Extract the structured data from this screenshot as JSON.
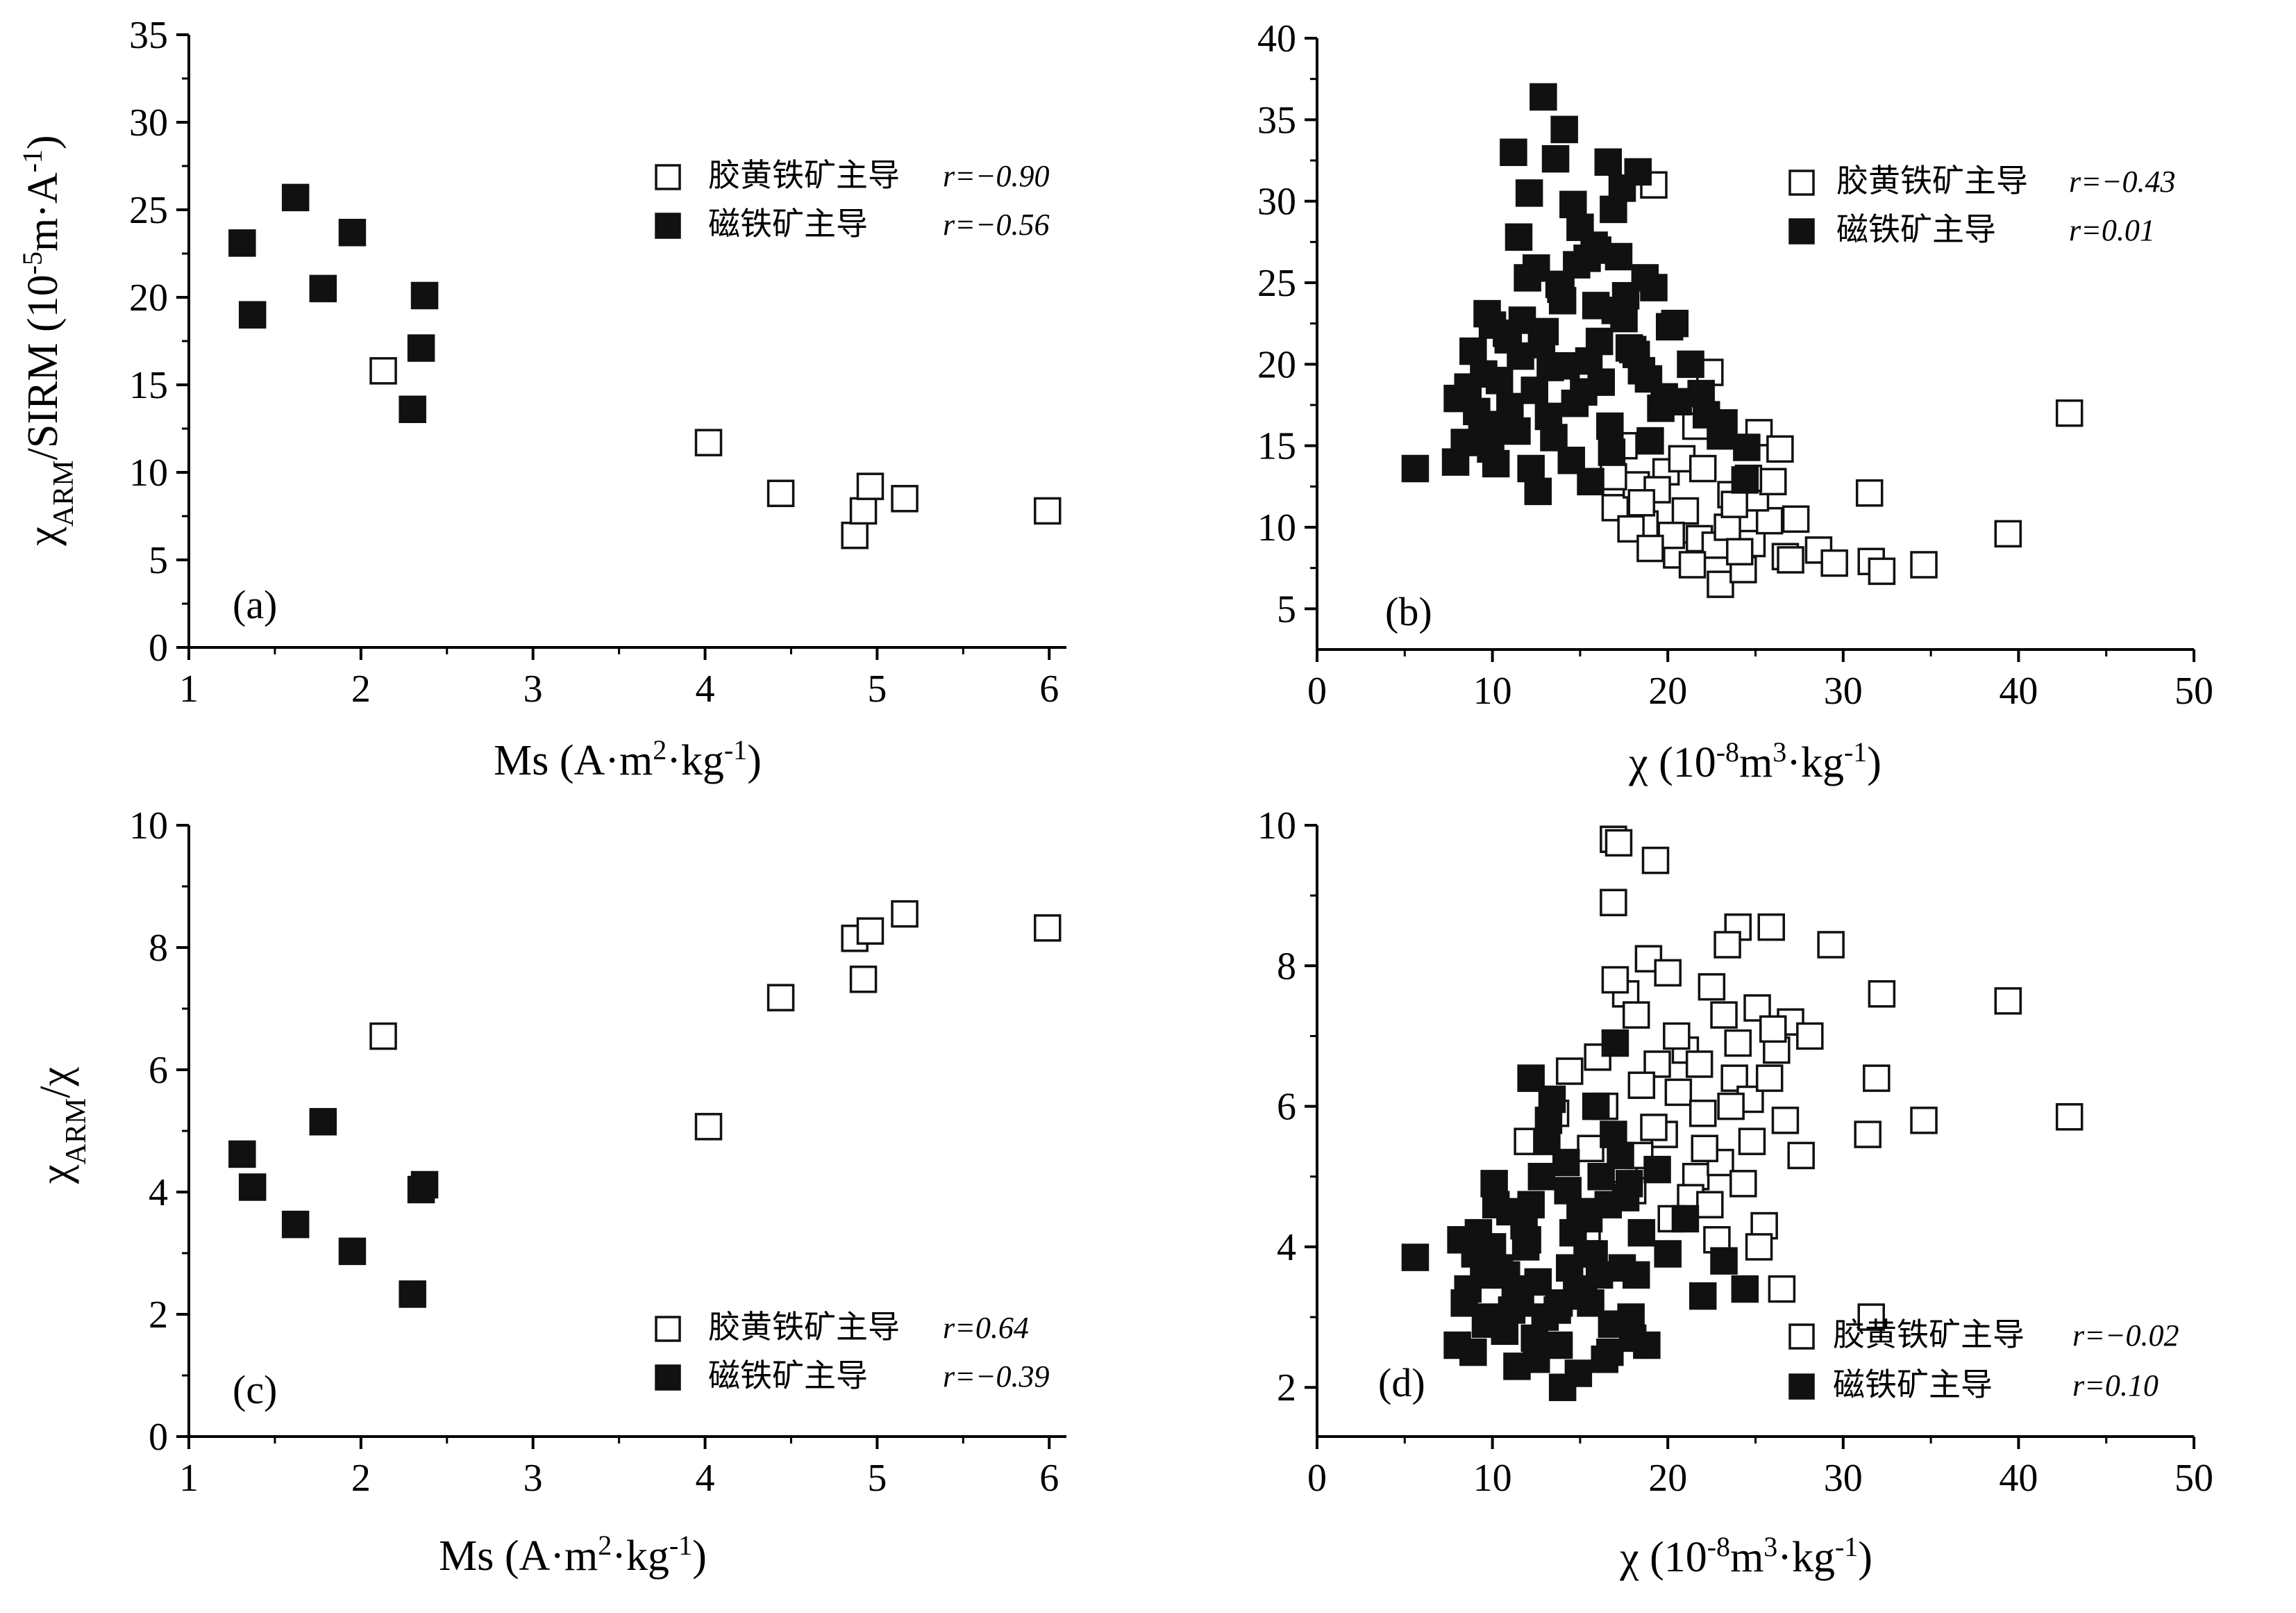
{
  "chart_data": [
    {
      "type": "scatter",
      "panel_label": "(a)",
      "xlabel": "Ms (A·m²·kg⁻¹)",
      "ylabel": "χARM/SIRM (10⁻⁵m·A⁻¹)",
      "xlim": [
        1,
        6.1
      ],
      "ylim": [
        0,
        35
      ],
      "xticks": [
        1,
        2,
        3,
        4,
        5,
        6
      ],
      "yticks": [
        0,
        5,
        10,
        15,
        20,
        25,
        30,
        35
      ],
      "grid": false,
      "legend_position": "top-right",
      "series": [
        {
          "name": "胶黄铁矿主导",
          "r_label": "r=−0.90",
          "marker": "open-square",
          "x": [
            2.13,
            4.02,
            4.44,
            4.87,
            4.92,
            4.96,
            5.16,
            5.99
          ],
          "y": [
            15.8,
            11.7,
            8.8,
            6.4,
            7.8,
            9.2,
            8.5,
            7.8
          ]
        },
        {
          "name": "磁铁矿主导",
          "r_label": "r=−0.56",
          "marker": "filled-square",
          "x": [
            1.31,
            1.37,
            1.62,
            1.78,
            1.95,
            2.3,
            2.35,
            2.37
          ],
          "y": [
            23.1,
            19.0,
            25.7,
            20.5,
            23.7,
            13.6,
            17.1,
            20.1
          ]
        }
      ]
    },
    {
      "type": "scatter",
      "panel_label": "(b)",
      "xlabel": "χ (10⁻⁸m³·kg⁻¹)",
      "ylabel": "",
      "xlim": [
        0,
        50
      ],
      "ylim": [
        2.5,
        40
      ],
      "xticks": [
        0,
        10,
        20,
        30,
        40,
        50
      ],
      "yticks": [
        5,
        10,
        15,
        20,
        25,
        30,
        35,
        40
      ],
      "grid": false,
      "legend_position": "top-right",
      "series": [
        {
          "name": "胶黄铁矿主导",
          "r_label": "r=−0.43",
          "marker": "open-square",
          "x": [
            19.2,
            22.4,
            25.2,
            26.4,
            28.6,
            31.5,
            31.6,
            32.2,
            34.6,
            39.4,
            42.9,
            23.0,
            24.3,
            20.5,
            21.8,
            18.7,
            17.0,
            26.7,
            27.3,
            29.5,
            24.8,
            23.6,
            19.9,
            18.2,
            21.0,
            22.7,
            25.8,
            20.8,
            16.9,
            17.9,
            23.4,
            25.0,
            19.4,
            21.4,
            24.1,
            26.0,
            22.0,
            18.5,
            20.2,
            23.8,
            27.0,
            17.5,
            21.6,
            24.6,
            19.0
          ],
          "y": [
            31.0,
            19.5,
            15.8,
            14.8,
            8.6,
            12.1,
            7.9,
            7.3,
            7.7,
            9.6,
            17.0,
            6.5,
            7.4,
            8.3,
            9.3,
            10.2,
            11.2,
            8.2,
            10.5,
            7.8,
            9.0,
            12.0,
            13.4,
            12.6,
            11.0,
            8.9,
            10.4,
            14.2,
            13.1,
            9.9,
            10.0,
            11.8,
            12.3,
            7.7,
            8.5,
            12.8,
            13.6,
            11.5,
            9.5,
            11.4,
            8.0,
            15.0,
            16.2,
            13.0,
            8.7
          ]
        },
        {
          "name": "磁铁矿主导",
          "r_label": "r=0.01",
          "marker": "filled-square",
          "x": [
            5.6,
            12.9,
            14.1,
            14.6,
            16.6,
            18.3,
            18.7,
            16.9,
            11.2,
            11.5,
            12.1,
            13.6,
            15.0,
            15.8,
            17.4,
            19.2,
            20.1,
            21.9,
            23.2,
            24.5,
            24.4,
            8.0,
            8.4,
            8.9,
            9.4,
            9.9,
            10.4,
            10.9,
            11.7,
            12.4,
            13.2,
            13.9,
            14.8,
            15.5,
            16.2,
            17.0,
            17.8,
            18.5,
            19.6,
            20.4,
            21.3,
            22.2,
            23.0,
            7.9,
            8.6,
            9.1,
            9.7,
            10.2,
            10.8,
            11.4,
            12.0,
            12.6,
            13.3,
            14.0,
            14.7,
            15.4,
            16.1,
            16.8,
            17.6,
            18.2,
            19.0,
            19.8,
            9.5,
            10.5,
            11.6,
            12.2,
            13.0,
            13.8,
            14.5,
            15.2,
            16.0,
            16.7,
            17.5,
            18.9,
            20.6,
            10.0,
            11.0,
            12.8,
            14.2,
            15.9,
            17.2,
            18.0,
            13.5,
            15.6,
            12.5
          ],
          "y": [
            13.6,
            36.4,
            34.4,
            29.8,
            32.4,
            31.8,
            25.3,
            29.5,
            33.0,
            27.8,
            30.5,
            32.6,
            28.4,
            27.3,
            30.8,
            24.7,
            22.3,
            18.2,
            16.4,
            14.9,
            12.9,
            17.9,
            15.2,
            20.8,
            16.0,
            14.8,
            19.0,
            21.5,
            22.7,
            18.4,
            16.8,
            24.6,
            26.1,
            20.2,
            18.9,
            23.3,
            21.0,
            19.6,
            17.3,
            22.5,
            20.0,
            16.9,
            15.6,
            14.0,
            18.6,
            17.1,
            23.1,
            13.9,
            21.9,
            15.9,
            25.3,
            12.2,
            19.8,
            23.9,
            17.6,
            26.5,
            21.4,
            14.6,
            24.2,
            20.6,
            15.3,
            18.0,
            19.4,
            16.3,
            20.5,
            13.6,
            22.0,
            24.9,
            14.1,
            18.3,
            27.0,
            16.2,
            22.8,
            19.1,
            17.7,
            22.4,
            17.4,
            21.2,
            19.9,
            23.6,
            26.6,
            20.9,
            15.5,
            12.8,
            25.9
          ]
        }
      ]
    },
    {
      "type": "scatter",
      "panel_label": "(c)",
      "xlabel": "Ms (A·m²·kg⁻¹)",
      "ylabel": "χARM/χ",
      "xlim": [
        1,
        6.1
      ],
      "ylim": [
        0,
        10
      ],
      "xticks": [
        1,
        2,
        3,
        4,
        5,
        6
      ],
      "yticks": [
        0,
        2,
        4,
        6,
        8,
        10
      ],
      "grid": false,
      "legend_position": "bottom-right",
      "series": [
        {
          "name": "胶黄铁矿主导",
          "r_label": "r=0.64",
          "marker": "open-square",
          "x": [
            2.13,
            4.02,
            4.44,
            4.87,
            4.92,
            4.96,
            5.16,
            5.99
          ],
          "y": [
            6.55,
            5.07,
            7.18,
            8.15,
            7.48,
            8.27,
            8.55,
            8.32
          ]
        },
        {
          "name": "磁铁矿主导",
          "r_label": "r=−0.39",
          "marker": "filled-square",
          "x": [
            1.31,
            1.37,
            1.62,
            1.78,
            1.95,
            2.3,
            2.35,
            2.37
          ],
          "y": [
            4.62,
            4.08,
            3.47,
            5.15,
            3.03,
            2.33,
            4.04,
            4.12
          ]
        }
      ]
    },
    {
      "type": "scatter",
      "panel_label": "(d)",
      "xlabel": "χ (10⁻⁸m³·kg⁻¹)",
      "ylabel": "",
      "xlim": [
        0,
        50
      ],
      "ylim": [
        1.3,
        10
      ],
      "xticks": [
        0,
        10,
        20,
        30,
        40,
        50
      ],
      "yticks": [
        2,
        4,
        6,
        8,
        10
      ],
      "grid": false,
      "legend_position": "bottom-right",
      "series": [
        {
          "name": "胶黄铁矿主导",
          "r_label": "r=−0.02",
          "marker": "open-square",
          "x": [
            16.9,
            17.2,
            19.3,
            16.9,
            29.3,
            32.2,
            39.4,
            42.9,
            31.9,
            34.6,
            31.6,
            31.4,
            26.5,
            24.0,
            25.9,
            18.9,
            20.0,
            22.5,
            23.4,
            25.1,
            27.0,
            28.1,
            21.0,
            19.4,
            17.6,
            18.2,
            16.4,
            15.6,
            14.4,
            12.0,
            20.6,
            22.0,
            23.8,
            24.7,
            26.2,
            27.6,
            21.6,
            19.8,
            18.5,
            17.0,
            15.1,
            21.3,
            23.0,
            24.3,
            25.5,
            26.7,
            22.8,
            20.2,
            18.0,
            16.0,
            24.0,
            25.2,
            19.2,
            22.1,
            23.6,
            20.5,
            21.8,
            17.5,
            25.8,
            15.4,
            13.6,
            23.2,
            24.8,
            22.4,
            18.4,
            26.0
          ],
          "y": [
            9.8,
            9.75,
            9.5,
            8.9,
            8.3,
            7.6,
            7.5,
            5.85,
            6.4,
            5.8,
            3.0,
            5.6,
            3.4,
            8.55,
            8.55,
            8.1,
            7.9,
            7.7,
            8.3,
            7.4,
            7.2,
            7.0,
            6.8,
            6.6,
            7.6,
            7.3,
            6.0,
            5.4,
            6.5,
            5.5,
            6.2,
            5.9,
            6.4,
            6.1,
            6.8,
            5.3,
            5.0,
            5.6,
            6.3,
            7.8,
            4.5,
            4.7,
            5.2,
            4.9,
            4.3,
            5.8,
            4.1,
            4.4,
            4.8,
            6.7,
            6.9,
            4.0,
            5.7,
            5.4,
            6.0,
            7.0,
            6.6,
            5.1,
            6.4,
            4.2,
            5.9,
            7.3,
            5.5,
            4.6,
            5.3,
            7.1
          ],
          "r_pos": "bottom-right"
        },
        {
          "name": "磁铁矿主导",
          "r_label": "r=0.10",
          "marker": "filled-square",
          "x": [
            5.6,
            8.0,
            8.6,
            9.2,
            9.8,
            10.4,
            11.0,
            11.6,
            12.2,
            12.8,
            13.4,
            14.0,
            14.6,
            15.2,
            15.8,
            16.4,
            17.0,
            17.6,
            18.2,
            18.8,
            19.4,
            20.0,
            21.0,
            22.0,
            23.2,
            24.4,
            8.2,
            8.9,
            9.5,
            10.1,
            10.7,
            11.3,
            11.9,
            12.5,
            13.1,
            13.7,
            14.3,
            14.9,
            15.5,
            16.1,
            16.7,
            17.3,
            17.9,
            18.5,
            8.4,
            9.0,
            9.6,
            10.2,
            10.8,
            11.4,
            12.0,
            12.6,
            13.2,
            13.8,
            14.4,
            15.0,
            15.6,
            16.2,
            16.8,
            17.4,
            18.0,
            11.8,
            13.0,
            14.2,
            15.4,
            16.6,
            12.4,
            14.8,
            10.0,
            16.9,
            13.8,
            12.2,
            15.9,
            11.1,
            17.8
          ],
          "y": [
            3.85,
            2.6,
            3.4,
            4.2,
            3.0,
            3.7,
            4.5,
            3.2,
            6.4,
            5.0,
            6.1,
            2.0,
            4.2,
            3.3,
            3.9,
            2.4,
            6.9,
            4.7,
            3.6,
            2.6,
            5.1,
            3.9,
            4.4,
            3.3,
            3.8,
            3.4,
            4.1,
            2.5,
            3.6,
            4.9,
            2.8,
            3.4,
            4.0,
            2.4,
            5.5,
            3.1,
            4.8,
            2.2,
            4.4,
            3.6,
            2.5,
            5.3,
            3.0,
            4.2,
            3.2,
            3.9,
            2.9,
            4.6,
            3.6,
            2.3,
            4.1,
            3.5,
            5.8,
            2.6,
            3.7,
            4.5,
            3.2,
            5.0,
            2.9,
            3.7,
            2.7,
            4.3,
            3.0,
            5.2,
            3.9,
            4.6,
            2.7,
            3.4,
            4.0,
            5.6,
            3.2,
            4.6,
            6.0,
            3.1,
            4.9
          ]
        }
      ]
    }
  ]
}
